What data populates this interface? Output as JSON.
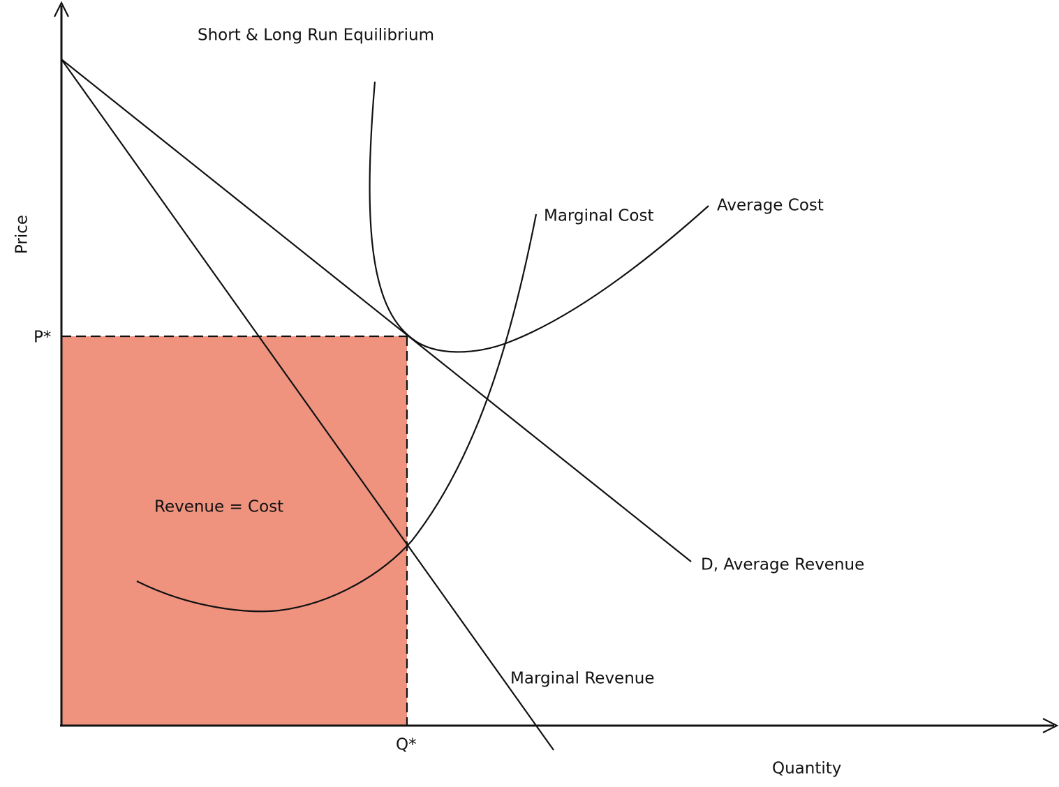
{
  "title": "Short & Long Run Equilibrium",
  "axes": {
    "x_label": "Quantity",
    "y_label": "Price"
  },
  "markers": {
    "price": "P*",
    "quantity": "Q*"
  },
  "curves": {
    "marginal_cost": "Marginal Cost",
    "average_cost": "Average Cost",
    "demand": "D, Average Revenue",
    "marginal_revenue": "Marginal Revenue"
  },
  "region_label": "Revenue = Cost"
}
